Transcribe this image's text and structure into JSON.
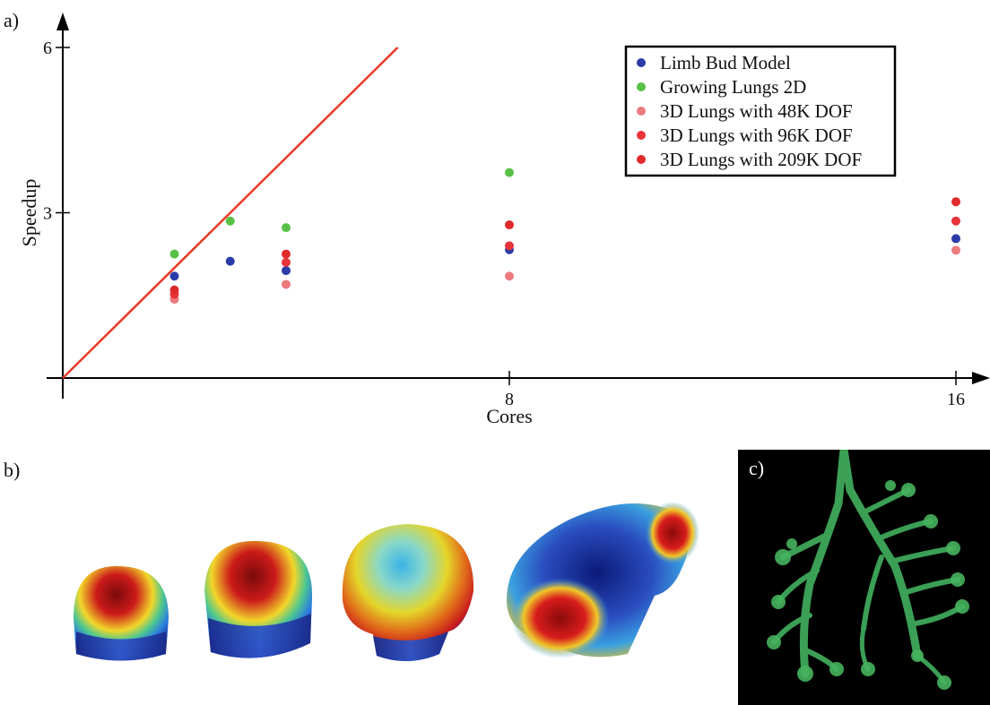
{
  "panel_labels": {
    "a": "a)",
    "b": "b)",
    "c": "c)"
  },
  "colors": {
    "limb_bud": "#2b3ca8",
    "growing_lungs": "#58c045",
    "lungs_48k": "#ec7b7e",
    "lungs_96k": "#e8333a",
    "lungs_209k": "#df2a2a",
    "ideal_line": "#e83a24"
  },
  "chart_data": {
    "type": "scatter",
    "xlabel": "Cores",
    "ylabel": "Speedup",
    "xlim": [
      0,
      16.5
    ],
    "ylim": [
      0,
      6
    ],
    "x_ticks": [
      8,
      16
    ],
    "y_ticks": [
      3,
      6
    ],
    "grid": false,
    "legend_position": "top-right",
    "reference_line": {
      "points": [
        [
          0,
          0
        ],
        [
          6,
          6
        ]
      ],
      "color": "#e83a24"
    },
    "series": [
      {
        "name": "Limb Bud Model",
        "color": "#2b3ca8",
        "points": [
          [
            2,
            1.85
          ],
          [
            3,
            2.12
          ],
          [
            4,
            1.95
          ],
          [
            8,
            2.33
          ],
          [
            16,
            2.53
          ]
        ]
      },
      {
        "name": "Growing Lungs 2D",
        "color": "#58c045",
        "points": [
          [
            2,
            2.25
          ],
          [
            3,
            2.85
          ],
          [
            4,
            2.73
          ],
          [
            8,
            3.73
          ]
        ]
      },
      {
        "name": "3D Lungs with 48K DOF",
        "color": "#ec7b7e",
        "points": [
          [
            2,
            1.43
          ],
          [
            4,
            1.7
          ],
          [
            8,
            1.85
          ],
          [
            16,
            2.32
          ]
        ]
      },
      {
        "name": "3D Lungs with 96K DOF",
        "color": "#e8333a",
        "points": [
          [
            2,
            1.52
          ],
          [
            4,
            2.1
          ],
          [
            8,
            2.4
          ],
          [
            16,
            2.85
          ]
        ]
      },
      {
        "name": "3D Lungs with 209K DOF",
        "color": "#df2a2a",
        "points": [
          [
            2,
            1.6
          ],
          [
            4,
            2.25
          ],
          [
            8,
            2.78
          ],
          [
            16,
            3.2
          ]
        ]
      }
    ]
  }
}
